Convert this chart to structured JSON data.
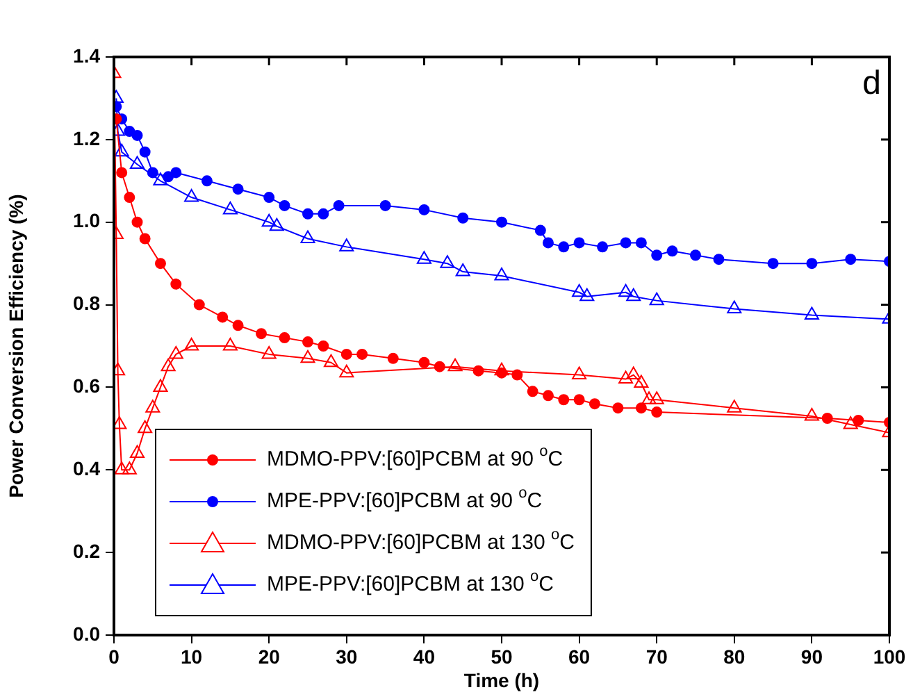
{
  "chart_data": {
    "type": "line",
    "xlabel": "Time (h)",
    "ylabel": "Power Conversion Efficiency (%)",
    "annotations": [
      "d"
    ],
    "legend": "bottom left",
    "grid": false,
    "line_style": "solid",
    "xlim": [
      0,
      100
    ],
    "xticks": [
      0,
      10,
      20,
      30,
      40,
      50,
      60,
      70,
      80,
      90,
      100
    ],
    "ylim": [
      0,
      1.4
    ],
    "yticks": [
      {
        "value": 0,
        "label": "0.0"
      },
      {
        "value": 0.2,
        "label": "0.2"
      },
      {
        "value": 0.4,
        "label": "0.4"
      },
      {
        "value": 0.6,
        "label": "0.6"
      },
      {
        "value": 0.8,
        "label": "0.8"
      },
      {
        "value": 1,
        "label": "1.0"
      },
      {
        "value": 1.2,
        "label": "1.2"
      },
      {
        "value": 1.4,
        "label": "1.4"
      }
    ],
    "series": [
      {
        "name": "MDMO-PPV:[60]PCBM at 90 $^{o}$C",
        "color": "#ff0000",
        "marker": "circle",
        "x": [
          0.3,
          1,
          2,
          3,
          4,
          6,
          8,
          11,
          14,
          16,
          19,
          22,
          25,
          27,
          30,
          32,
          36,
          40,
          42,
          47,
          50,
          52,
          54,
          56,
          58,
          60,
          62,
          65,
          68,
          70,
          92,
          96,
          100
        ],
        "values": [
          1.25,
          1.12,
          1.06,
          1.0,
          0.96,
          0.9,
          0.85,
          0.8,
          0.77,
          0.75,
          0.73,
          0.72,
          0.71,
          0.7,
          0.68,
          0.68,
          0.67,
          0.66,
          0.65,
          0.64,
          0.635,
          0.63,
          0.59,
          0.58,
          0.57,
          0.57,
          0.56,
          0.55,
          0.55,
          0.54,
          0.525,
          0.52,
          0.515
        ]
      },
      {
        "name": "MPE-PPV:[60]PCBM at 90 $^{o}$C",
        "color": "#0000ff",
        "marker": "circle",
        "x": [
          0.3,
          1,
          2,
          3,
          4,
          5,
          7,
          8,
          12,
          16,
          20,
          22,
          25,
          27,
          29,
          35,
          40,
          45,
          50,
          55,
          56,
          58,
          60,
          63,
          66,
          68,
          70,
          72,
          75,
          78,
          85,
          90,
          95,
          100
        ],
        "values": [
          1.28,
          1.25,
          1.22,
          1.21,
          1.17,
          1.12,
          1.11,
          1.12,
          1.1,
          1.08,
          1.06,
          1.04,
          1.02,
          1.02,
          1.04,
          1.04,
          1.03,
          1.01,
          1.0,
          0.98,
          0.95,
          0.94,
          0.95,
          0.94,
          0.95,
          0.95,
          0.92,
          0.93,
          0.92,
          0.91,
          0.9,
          0.9,
          0.91,
          0.905
        ]
      },
      {
        "name": "MDMO-PPV:[60]PCBM at 130 $^{o}$C",
        "color": "#ff0000",
        "marker": "triangle",
        "x": [
          0,
          0.3,
          0.5,
          0.7,
          1,
          2,
          3,
          4,
          5,
          6,
          7,
          8,
          10,
          15,
          20,
          25,
          28,
          30,
          44,
          50,
          60,
          66,
          67,
          68,
          69,
          70,
          80,
          90,
          95,
          100
        ],
        "values": [
          1.36,
          0.97,
          0.64,
          0.51,
          0.4,
          0.4,
          0.44,
          0.5,
          0.55,
          0.6,
          0.65,
          0.68,
          0.7,
          0.7,
          0.68,
          0.67,
          0.66,
          0.635,
          0.65,
          0.64,
          0.63,
          0.62,
          0.63,
          0.61,
          0.57,
          0.57,
          0.55,
          0.53,
          0.51,
          0.49
        ]
      },
      {
        "name": "MPE-PPV:[60]PCBM at 130 $^{o}$C",
        "color": "#0000ff",
        "marker": "triangle",
        "x": [
          0.3,
          0.5,
          1,
          3,
          6,
          10,
          15,
          20,
          21,
          25,
          30,
          40,
          43,
          45,
          50,
          60,
          61,
          66,
          67,
          70,
          80,
          90,
          100
        ],
        "values": [
          1.3,
          1.22,
          1.17,
          1.14,
          1.1,
          1.06,
          1.03,
          1.0,
          0.99,
          0.96,
          0.94,
          0.91,
          0.9,
          0.88,
          0.87,
          0.83,
          0.82,
          0.83,
          0.82,
          0.81,
          0.79,
          0.775,
          0.765
        ]
      }
    ]
  }
}
